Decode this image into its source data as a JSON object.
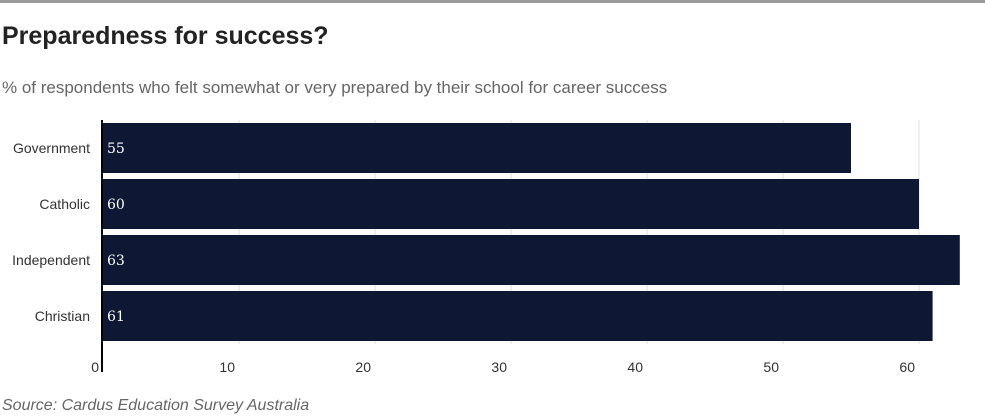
{
  "header": {
    "title": "Preparedness for success?",
    "subtitle": "% of respondents who felt somewhat or very prepared by their school for career success"
  },
  "footer": {
    "source": "Source: Cardus Education Survey Australia"
  },
  "colors": {
    "bar": "#0e1733",
    "grid": "#e0e0e0",
    "axis": "#000000",
    "bar_label": "#ffffff",
    "text": "#333333"
  },
  "chart_data": {
    "type": "bar",
    "orientation": "horizontal",
    "title": "Preparedness for success?",
    "subtitle": "% of respondents who felt somewhat or very prepared by their school for career success",
    "categories": [
      "Government",
      "Catholic",
      "Independent",
      "Christian"
    ],
    "values": [
      55,
      60,
      63,
      61
    ],
    "data_labels": [
      "55",
      "60",
      "63",
      "61"
    ],
    "x_ticks": [
      0,
      10,
      20,
      30,
      40,
      50,
      60
    ],
    "xlim": [
      0,
      63
    ],
    "grid": true,
    "legend": "none"
  }
}
